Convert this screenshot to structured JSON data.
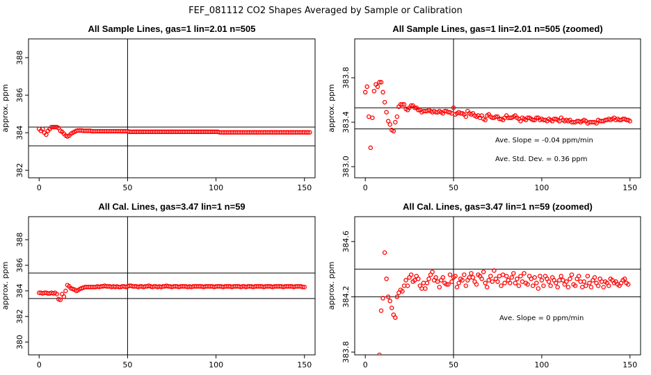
{
  "suptitle": "FEF_081112  CO2 Shapes Averaged by Sample or Calibration",
  "colors": {
    "points": "#ff0000",
    "axes": "#000000",
    "background": "#ffffff"
  },
  "chart_data": [
    {
      "type": "scatter",
      "title": "All Sample Lines, gas=1 lin=2.01 n=505",
      "ylabel": "approx. ppm",
      "xlim": [
        -6,
        156
      ],
      "ylim": [
        381.6,
        389.0
      ],
      "xticks": [
        0,
        50,
        100,
        150
      ],
      "yticks": [
        382,
        384,
        386,
        388
      ],
      "ytick_labels": [
        "382",
        "384",
        "386",
        "388"
      ],
      "hlines": [
        383.3,
        384.3
      ],
      "vline": 50,
      "annotations": [],
      "x_start": 0,
      "x_step": 1,
      "y": [
        384.2,
        384.1,
        384.2,
        384.0,
        383.9,
        384.1,
        384.2,
        384.3,
        384.3,
        384.3,
        384.3,
        384.25,
        384.1,
        384.05,
        383.95,
        383.85,
        383.8,
        383.85,
        383.95,
        384.0,
        384.05,
        384.1,
        384.12,
        384.12,
        384.12,
        384.1,
        384.1,
        384.1,
        384.1,
        384.1,
        384.08,
        384.08,
        384.08,
        384.08,
        384.08,
        384.08,
        384.08,
        384.08,
        384.08,
        384.08,
        384.08,
        384.08,
        384.08,
        384.08,
        384.08,
        384.08,
        384.08,
        384.08,
        384.08,
        384.08,
        384.08,
        384.05,
        384.05,
        384.05,
        384.05,
        384.05,
        384.05,
        384.05,
        384.05,
        384.05,
        384.05,
        384.05,
        384.05,
        384.05,
        384.05,
        384.05,
        384.05,
        384.05,
        384.05,
        384.05,
        384.05,
        384.05,
        384.05,
        384.05,
        384.05,
        384.05,
        384.05,
        384.05,
        384.05,
        384.05,
        384.05,
        384.05,
        384.05,
        384.05,
        384.05,
        384.05,
        384.05,
        384.05,
        384.05,
        384.05,
        384.05,
        384.05,
        384.05,
        384.05,
        384.05,
        384.05,
        384.05,
        384.05,
        384.05,
        384.05,
        384.05,
        384.05,
        384.02,
        384.02,
        384.02,
        384.02,
        384.02,
        384.02,
        384.02,
        384.02,
        384.02,
        384.02,
        384.02,
        384.02,
        384.02,
        384.02,
        384.02,
        384.02,
        384.02,
        384.02,
        384.02,
        384.02,
        384.02,
        384.02,
        384.02,
        384.02,
        384.02,
        384.02,
        384.02,
        384.02,
        384.02,
        384.02,
        384.02,
        384.02,
        384.02,
        384.02,
        384.02,
        384.02,
        384.02,
        384.02,
        384.02,
        384.02,
        384.02,
        384.02,
        384.02,
        384.02,
        384.02,
        384.02,
        384.02,
        384.02,
        384.02,
        384.02,
        384.02,
        384.02
      ]
    },
    {
      "type": "scatter",
      "title": "All Sample Lines, gas=1 lin=2.01 n=505 (zoomed)",
      "ylabel": "approx. ppm",
      "xlim": [
        -6,
        156
      ],
      "ylim": [
        382.9,
        384.15
      ],
      "xticks": [
        0,
        50,
        100,
        150
      ],
      "yticks": [
        383.0,
        383.4,
        383.8
      ],
      "ytick_labels": [
        "383.0",
        "383.4",
        "383.8"
      ],
      "hlines": [
        383.53,
        383.34
      ],
      "vline": 50,
      "annotations": [
        "Ave. Slope =  -0.04  ppm/min",
        "Ave. Std. Dev. =  0.36  ppm"
      ],
      "x_start": 0,
      "x_step": 1,
      "y": [
        383.67,
        383.72,
        383.45,
        383.17,
        383.44,
        383.68,
        383.74,
        383.72,
        383.76,
        383.76,
        383.67,
        383.58,
        383.49,
        383.41,
        383.38,
        383.33,
        383.32,
        383.4,
        383.45,
        383.54,
        383.56,
        383.56,
        383.56,
        383.52,
        383.51,
        383.53,
        383.55,
        383.55,
        383.53,
        383.53,
        383.51,
        383.51,
        383.49,
        383.5,
        383.5,
        383.5,
        383.51,
        383.5,
        383.49,
        383.5,
        383.49,
        383.49,
        383.5,
        383.49,
        383.48,
        383.5,
        383.5,
        383.49,
        383.49,
        383.48,
        383.53,
        383.47,
        383.48,
        383.49,
        383.48,
        383.48,
        383.47,
        383.45,
        383.5,
        383.48,
        383.47,
        383.48,
        383.46,
        383.45,
        383.46,
        383.44,
        383.46,
        383.43,
        383.42,
        383.46,
        383.47,
        383.45,
        383.44,
        383.44,
        383.45,
        383.45,
        383.43,
        383.43,
        383.42,
        383.44,
        383.46,
        383.44,
        383.44,
        383.44,
        383.45,
        383.46,
        383.44,
        383.43,
        383.41,
        383.44,
        383.43,
        383.42,
        383.44,
        383.44,
        383.43,
        383.42,
        383.42,
        383.44,
        383.44,
        383.42,
        383.43,
        383.42,
        383.42,
        383.41,
        383.43,
        383.42,
        383.41,
        383.43,
        383.43,
        383.42,
        383.41,
        383.44,
        383.42,
        383.41,
        383.42,
        383.41,
        383.42,
        383.4,
        383.4,
        383.4,
        383.41,
        383.41,
        383.4,
        383.41,
        383.42,
        383.41,
        383.39,
        383.4,
        383.4,
        383.4,
        383.4,
        383.39,
        383.42,
        383.41,
        383.41,
        383.41,
        383.42,
        383.42,
        383.43,
        383.42,
        383.43,
        383.44,
        383.42,
        383.43,
        383.42,
        383.42,
        383.43,
        383.43,
        383.42,
        383.42,
        383.41
      ]
    },
    {
      "type": "scatter",
      "title": "All Cal. Lines, gas=3.47 lin=1 n=59",
      "ylabel": "approx. ppm",
      "xlim": [
        -6,
        156
      ],
      "ylim": [
        379.0,
        389.8
      ],
      "xticks": [
        0,
        50,
        100,
        150
      ],
      "yticks": [
        380,
        382,
        384,
        386,
        388
      ],
      "ytick_labels": [
        "380",
        "382",
        "384",
        "386",
        "388"
      ],
      "hlines": [
        385.4,
        383.4
      ],
      "vline": 50,
      "annotations": [],
      "x_start": 0,
      "x_step": 1,
      "y": [
        383.85,
        383.85,
        383.8,
        383.85,
        383.85,
        383.8,
        383.8,
        383.85,
        383.8,
        383.85,
        383.75,
        383.35,
        383.3,
        383.75,
        383.55,
        384.0,
        384.45,
        384.35,
        384.2,
        384.15,
        384.1,
        384.0,
        384.05,
        384.15,
        384.2,
        384.25,
        384.3,
        384.3,
        384.3,
        384.3,
        384.3,
        384.3,
        384.3,
        384.35,
        384.3,
        384.35,
        384.35,
        384.4,
        384.35,
        384.35,
        384.35,
        384.3,
        384.35,
        384.3,
        384.35,
        384.3,
        384.3,
        384.35,
        384.35,
        384.3,
        384.35,
        384.4,
        384.4,
        384.35,
        384.35,
        384.35,
        384.3,
        384.35,
        384.35,
        384.3,
        384.35,
        384.35,
        384.4,
        384.35,
        384.3,
        384.35,
        384.35,
        384.3,
        384.35,
        384.3,
        384.35,
        384.35,
        384.4,
        384.35,
        384.35,
        384.3,
        384.35,
        384.35,
        384.35,
        384.3,
        384.35,
        384.35,
        384.35,
        384.35,
        384.3,
        384.35,
        384.3,
        384.35,
        384.35,
        384.35,
        384.35,
        384.35,
        384.35,
        384.3,
        384.35,
        384.35,
        384.35,
        384.35,
        384.35,
        384.3,
        384.35,
        384.35,
        384.35,
        384.35,
        384.3,
        384.35,
        384.35,
        384.35,
        384.35,
        384.3,
        384.35,
        384.35,
        384.35,
        384.35,
        384.3,
        384.35,
        384.35,
        384.3,
        384.35,
        384.35,
        384.35,
        384.3,
        384.35,
        384.35,
        384.35,
        384.35,
        384.35,
        384.3,
        384.35,
        384.35,
        384.35,
        384.35,
        384.3,
        384.35,
        384.35,
        384.35,
        384.35,
        384.35,
        384.3,
        384.35,
        384.35,
        384.35,
        384.35,
        384.35,
        384.3,
        384.35,
        384.35,
        384.35,
        384.35,
        384.3,
        384.3
      ]
    },
    {
      "type": "scatter",
      "title": "All Cal. Lines, gas=3.47 lin=1 n=59 (zoomed)",
      "ylabel": "approx. ppm",
      "xlim": [
        -6,
        156
      ],
      "ylim": [
        383.78,
        384.78
      ],
      "xticks": [
        0,
        50,
        100,
        150
      ],
      "yticks": [
        383.8,
        384.2,
        384.6
      ],
      "ytick_labels": [
        "383.8",
        "384.2",
        "384.6"
      ],
      "hlines": [
        384.4,
        384.2
      ],
      "vline": 50,
      "annotations": [
        "Ave. Slope =  0  ppm/min"
      ],
      "x_start": 8,
      "x_step": 1,
      "y": [
        383.78,
        384.1,
        384.19,
        384.52,
        384.33,
        384.2,
        384.17,
        384.12,
        384.07,
        384.05,
        384.2,
        384.23,
        384.25,
        384.24,
        384.28,
        384.32,
        384.28,
        384.34,
        384.36,
        384.31,
        384.32,
        384.35,
        384.33,
        384.28,
        384.26,
        384.3,
        384.26,
        384.3,
        384.33,
        384.36,
        384.38,
        384.32,
        384.34,
        384.31,
        384.27,
        384.32,
        384.34,
        384.3,
        384.29,
        384.29,
        384.36,
        384.31,
        384.34,
        384.35,
        384.27,
        384.3,
        384.33,
        384.32,
        384.36,
        384.28,
        384.32,
        384.34,
        384.37,
        384.34,
        384.31,
        384.29,
        384.36,
        384.35,
        384.33,
        384.38,
        384.3,
        384.27,
        384.32,
        384.35,
        384.31,
        384.39,
        384.33,
        384.31,
        384.35,
        384.28,
        384.36,
        384.3,
        384.35,
        384.32,
        384.3,
        384.34,
        384.37,
        384.3,
        384.33,
        384.28,
        384.35,
        384.31,
        384.37,
        384.3,
        384.29,
        384.35,
        384.33,
        384.28,
        384.34,
        384.3,
        384.26,
        384.35,
        384.32,
        384.28,
        384.35,
        384.33,
        384.31,
        384.28,
        384.34,
        384.32,
        384.3,
        384.27,
        384.32,
        384.35,
        384.32,
        384.29,
        384.31,
        384.27,
        384.33,
        384.36,
        384.29,
        384.28,
        384.33,
        384.35,
        384.31,
        384.27,
        384.31,
        384.28,
        384.35,
        384.3,
        384.27,
        384.32,
        384.34,
        384.3,
        384.28,
        384.33,
        384.31,
        384.27,
        384.31,
        384.3,
        384.28,
        384.33,
        384.32,
        384.3,
        384.31,
        384.29,
        384.28,
        384.3,
        384.32,
        384.33,
        384.3,
        384.29
      ]
    }
  ]
}
